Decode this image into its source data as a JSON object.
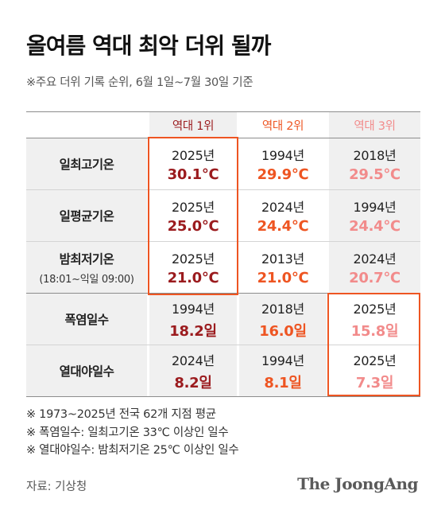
{
  "title": "올여름 역대 최악 더위 될까",
  "subtitle": "※주요 더위 기록 순위, 6월 1일~7월 30일 기준",
  "headers": [
    "역대 1위",
    "역대 2위",
    "역대 3위"
  ],
  "rows": [
    {
      "label": "일최고기온",
      "sublabel": "",
      "cells": [
        {
          "year": "2025년",
          "value": "30.1℃"
        },
        {
          "year": "1994년",
          "value": "29.9℃"
        },
        {
          "year": "2018년",
          "value": "29.5℃"
        }
      ]
    },
    {
      "label": "일평균기온",
      "sublabel": "",
      "cells": [
        {
          "year": "2025년",
          "value": "25.0℃"
        },
        {
          "year": "2024년",
          "value": "24.4℃"
        },
        {
          "year": "1994년",
          "value": "24.4℃"
        }
      ]
    },
    {
      "label": "밤최저기온",
      "sublabel": "(18:01~익일 09:00)",
      "cells": [
        {
          "year": "2025년",
          "value": "21.0℃"
        },
        {
          "year": "2013년",
          "value": "21.0℃"
        },
        {
          "year": "2024년",
          "value": "20.7℃"
        }
      ]
    },
    {
      "label": "폭염일수",
      "sublabel": "",
      "cells": [
        {
          "year": "1994년",
          "value": "18.2일"
        },
        {
          "year": "2018년",
          "value": "16.0일"
        },
        {
          "year": "2025년",
          "value": "15.8일"
        }
      ]
    },
    {
      "label": "열대야일수",
      "sublabel": "",
      "cells": [
        {
          "year": "2024년",
          "value": "8.2일"
        },
        {
          "year": "1994년",
          "value": "8.1일"
        },
        {
          "year": "2025년",
          "value": "7.3일"
        }
      ]
    }
  ],
  "notes": [
    "※ 1973~2025년 전국 62개 지점 평균",
    "※ 폭염일수: 일최고기온 33℃ 이상인 일수",
    "※ 열대야일수: 밤최저기온 25℃ 이상인 일수"
  ],
  "source": "자료: 기상청",
  "brand": "The JoongAng",
  "colors": {
    "rank1": "#9b1b1e",
    "rank2": "#ee5522",
    "rank3": "#f28b8b",
    "highlight_border": "#ee5522",
    "shade": "#f0f0f0"
  }
}
